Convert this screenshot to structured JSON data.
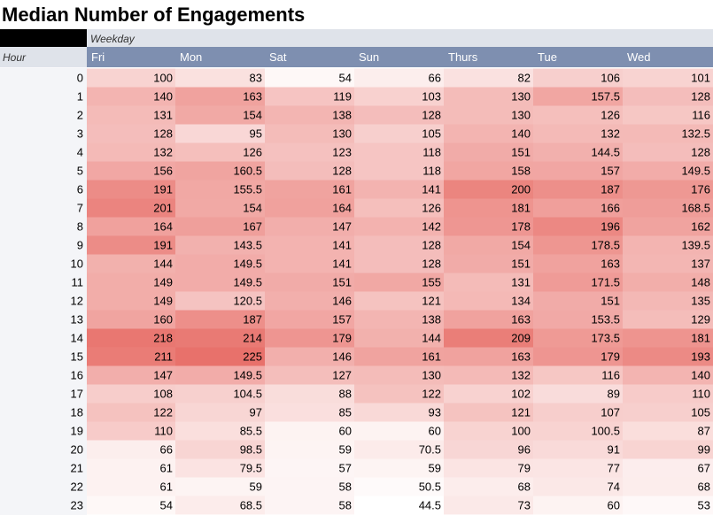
{
  "chart_data": {
    "type": "heatmap",
    "title": "Median Number of Engagements",
    "column_field": "Weekday",
    "row_field": "Hour",
    "columns": [
      "Fri",
      "Mon",
      "Sat",
      "Sun",
      "Thurs",
      "Tue",
      "Wed"
    ],
    "rows": [
      "0",
      "1",
      "2",
      "3",
      "4",
      "5",
      "6",
      "7",
      "8",
      "9",
      "10",
      "11",
      "12",
      "13",
      "14",
      "15",
      "16",
      "17",
      "18",
      "19",
      "20",
      "21",
      "22",
      "23"
    ],
    "values": [
      [
        100,
        83,
        54,
        66,
        82,
        106,
        101
      ],
      [
        140,
        163,
        119,
        103,
        130,
        157.5,
        128
      ],
      [
        131,
        154,
        138,
        128,
        130,
        126,
        116
      ],
      [
        128,
        95,
        130,
        105,
        140,
        132,
        132.5
      ],
      [
        132,
        126,
        123,
        118,
        151,
        144.5,
        128
      ],
      [
        156,
        160.5,
        128,
        118,
        158,
        157,
        149.5
      ],
      [
        191,
        155.5,
        161,
        141,
        200,
        187,
        176
      ],
      [
        201,
        154,
        164,
        126,
        181,
        166,
        168.5
      ],
      [
        164,
        167,
        147,
        142,
        178,
        196,
        162
      ],
      [
        191,
        143.5,
        141,
        128,
        154,
        178.5,
        139.5
      ],
      [
        144,
        149.5,
        141,
        128,
        151,
        163,
        137
      ],
      [
        149,
        149.5,
        151,
        155,
        131,
        171.5,
        148
      ],
      [
        149,
        120.5,
        146,
        121,
        134,
        151,
        135
      ],
      [
        160,
        187,
        157,
        138,
        163,
        153.5,
        129
      ],
      [
        218,
        214,
        179,
        144,
        209,
        173.5,
        181
      ],
      [
        211,
        225,
        146,
        161,
        163,
        179,
        193
      ],
      [
        147,
        149.5,
        127,
        130,
        132,
        116,
        140
      ],
      [
        108,
        104.5,
        88,
        122,
        102,
        89,
        110
      ],
      [
        122,
        97,
        85,
        93,
        121,
        107,
        105
      ],
      [
        110,
        85.5,
        60,
        60,
        100,
        100.5,
        87
      ],
      [
        66,
        98.5,
        59,
        70.5,
        96,
        91,
        99
      ],
      [
        61,
        79.5,
        57,
        59,
        79,
        77,
        67
      ],
      [
        61,
        59,
        58,
        50.5,
        68,
        74,
        68
      ],
      [
        54,
        68.5,
        58,
        44.5,
        73,
        60,
        53
      ]
    ],
    "color_scale": {
      "low": "#ffffff",
      "high": "#e8716b"
    }
  },
  "colors": {
    "header_bg": "#7e8fb0",
    "header_text": "#ffffff",
    "weekday_band_bg": "#dfe3ea",
    "corner_block": "#000000",
    "hour_label_bg": "#dfe3ea",
    "row_header_bg": "#f4f5f8"
  }
}
